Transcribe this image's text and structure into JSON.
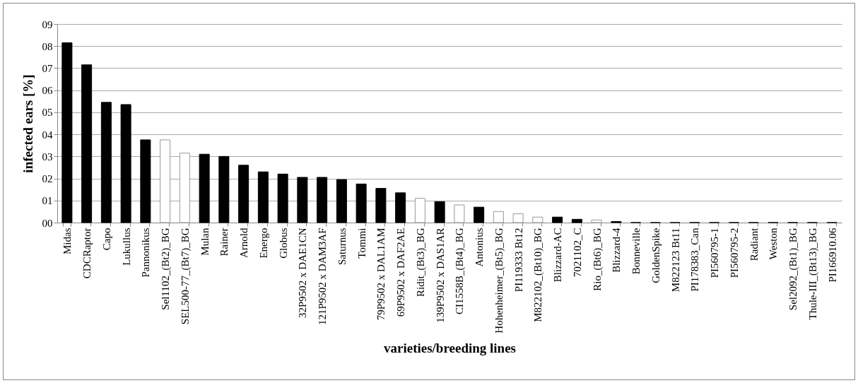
{
  "chart_data": {
    "type": "bar",
    "xlabel": "varieties/breeding lines",
    "ylabel": "infected ears [%]",
    "categories": [
      "Midas",
      "CDCRaptor",
      "Capo",
      "Lukullus",
      "Pannonikus",
      "Sel1102_(Bt2)_BG",
      "SEL500-77_(Bt7)_BG",
      "Mulan",
      "Rainer",
      "Arnold",
      "Energo",
      "Globus",
      "32P9502 x DAE1CN",
      "121P9502 x DAM3AF",
      "Saturnus",
      "Tommi",
      "79P9502 x DAL1AM",
      "69P9502 x DAF2AE",
      "Ridit_(Bt3)_BG",
      "139P9502 x DAS1AR",
      "CI1558B_(Bt4)_BG",
      "Antonius",
      "Hohenheimer_(Bt5)_BG",
      "PI119333 Bt12",
      "M822102_(Bt10)_BG",
      "Blizzard-AC",
      "7021102_C",
      "Rio_(Bt6)_BG",
      "Blizzard-4",
      "Bonneville",
      "GoldenSpike",
      "M822123 Bt11",
      "PI178383_Can",
      "PI560795-1",
      "PI560795-2",
      "Radiant",
      "Weston",
      "Sel2092_(Bt1)_BG",
      "Thule-III_(Bt13)_BG",
      "PI166910.06"
    ],
    "values": [
      8.15,
      7.15,
      5.45,
      5.35,
      3.75,
      3.75,
      3.15,
      3.1,
      3.0,
      2.6,
      2.3,
      2.2,
      2.05,
      2.05,
      1.95,
      1.75,
      1.55,
      1.35,
      1.1,
      0.95,
      0.8,
      0.7,
      0.5,
      0.4,
      0.25,
      0.25,
      0.15,
      0.12,
      0.05,
      0,
      0,
      0,
      0,
      0,
      0,
      0,
      0,
      0,
      0,
      0
    ],
    "colors": [
      "#000000",
      "#000000",
      "#000000",
      "#000000",
      "#000000",
      "#ffffff",
      "#ffffff",
      "#000000",
      "#000000",
      "#000000",
      "#000000",
      "#000000",
      "#000000",
      "#000000",
      "#000000",
      "#000000",
      "#000000",
      "#000000",
      "#ffffff",
      "#000000",
      "#ffffff",
      "#000000",
      "#ffffff",
      "#ffffff",
      "#ffffff",
      "#000000",
      "#000000",
      "#ffffff",
      "#000000",
      "#000000",
      "#000000",
      "#000000",
      "#000000",
      "#000000",
      "#000000",
      "#000000",
      "#000000",
      "#000000",
      "#000000",
      "#000000"
    ],
    "ylim": [
      0,
      9
    ],
    "yticks": [
      {
        "value": 0,
        "label": "00"
      },
      {
        "value": 1,
        "label": "01"
      },
      {
        "value": 2,
        "label": "02"
      },
      {
        "value": 3,
        "label": "03"
      },
      {
        "value": 4,
        "label": "04"
      },
      {
        "value": 5,
        "label": "05"
      },
      {
        "value": 6,
        "label": "06"
      },
      {
        "value": 7,
        "label": "07"
      },
      {
        "value": 8,
        "label": "08"
      },
      {
        "value": 9,
        "label": "09"
      }
    ],
    "grid": "y"
  }
}
